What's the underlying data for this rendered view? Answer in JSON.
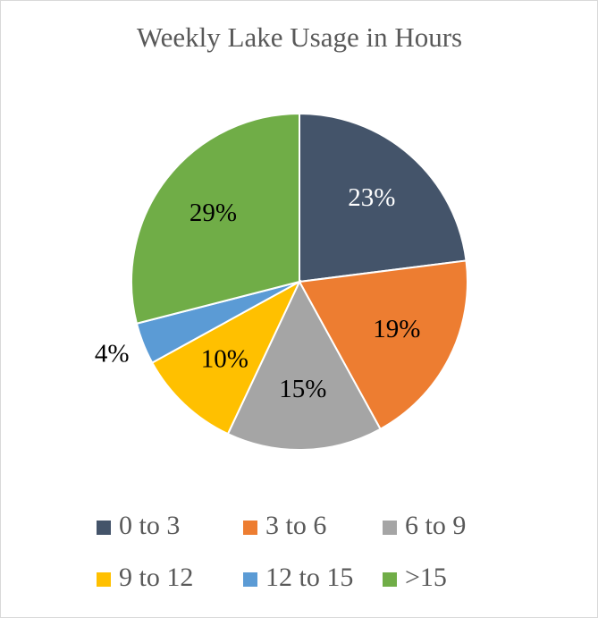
{
  "chart_data": {
    "type": "pie",
    "title": "Weekly Lake Usage in Hours",
    "categories": [
      "0 to 3",
      "3 to 6",
      "6 to 9",
      "9 to 12",
      "12 to 15",
      ">15"
    ],
    "values": [
      23,
      19,
      15,
      10,
      4,
      29
    ],
    "value_labels": [
      "23%",
      "19%",
      "15%",
      "10%",
      "4%",
      "29%"
    ],
    "colors": [
      "#44546a",
      "#ed7d31",
      "#a5a5a5",
      "#ffc000",
      "#5b9bd5",
      "#70ad47"
    ],
    "legend": "bottom"
  }
}
